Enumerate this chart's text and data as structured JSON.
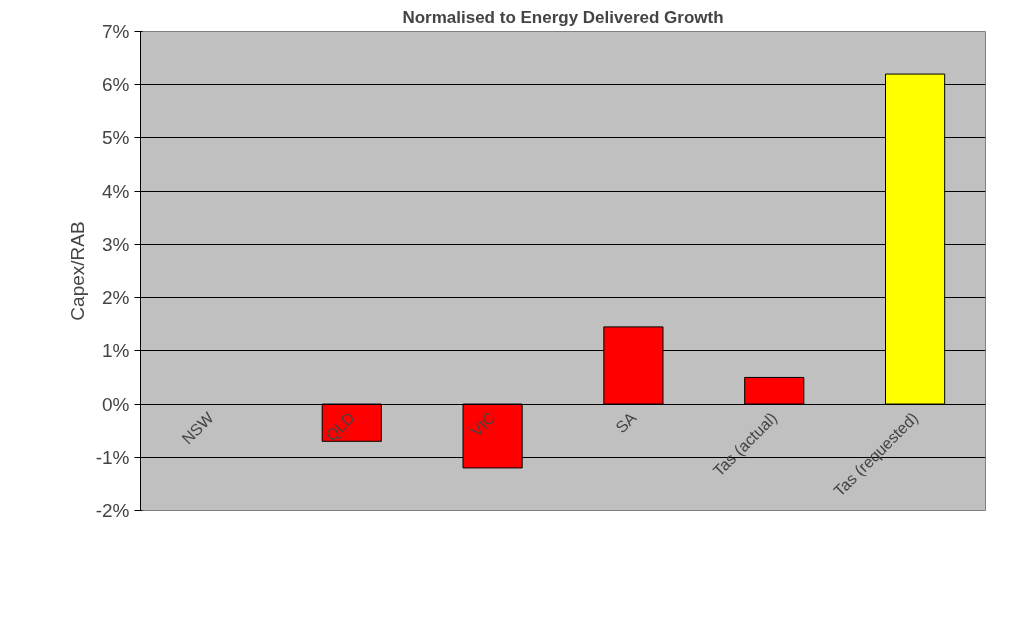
{
  "chart_data": {
    "type": "bar",
    "title": "Normalised to Energy Delivered Growth",
    "ylabel": "Capex/RAB",
    "categories": [
      "NSW",
      "QLD",
      "VIC",
      "SA",
      "Tas (actual)",
      "Tas (requested)"
    ],
    "values": [
      null,
      -0.7,
      -1.2,
      1.45,
      0.5,
      6.2
    ],
    "colors": [
      "#ff0000",
      "#ff0000",
      "#ff0000",
      "#ff0000",
      "#ff0000",
      "#ffff00"
    ],
    "ylim": [
      -2,
      7
    ],
    "yticks": [
      {
        "value": -2,
        "label": "-2%"
      },
      {
        "value": -1,
        "label": "-1%"
      },
      {
        "value": 0,
        "label": "0%"
      },
      {
        "value": 1,
        "label": "1%"
      },
      {
        "value": 2,
        "label": "2%"
      },
      {
        "value": 3,
        "label": "3%"
      },
      {
        "value": 4,
        "label": "4%"
      },
      {
        "value": 5,
        "label": "5%"
      },
      {
        "value": 6,
        "label": "6%"
      },
      {
        "value": 7,
        "label": "7%"
      }
    ],
    "grid": "y"
  }
}
